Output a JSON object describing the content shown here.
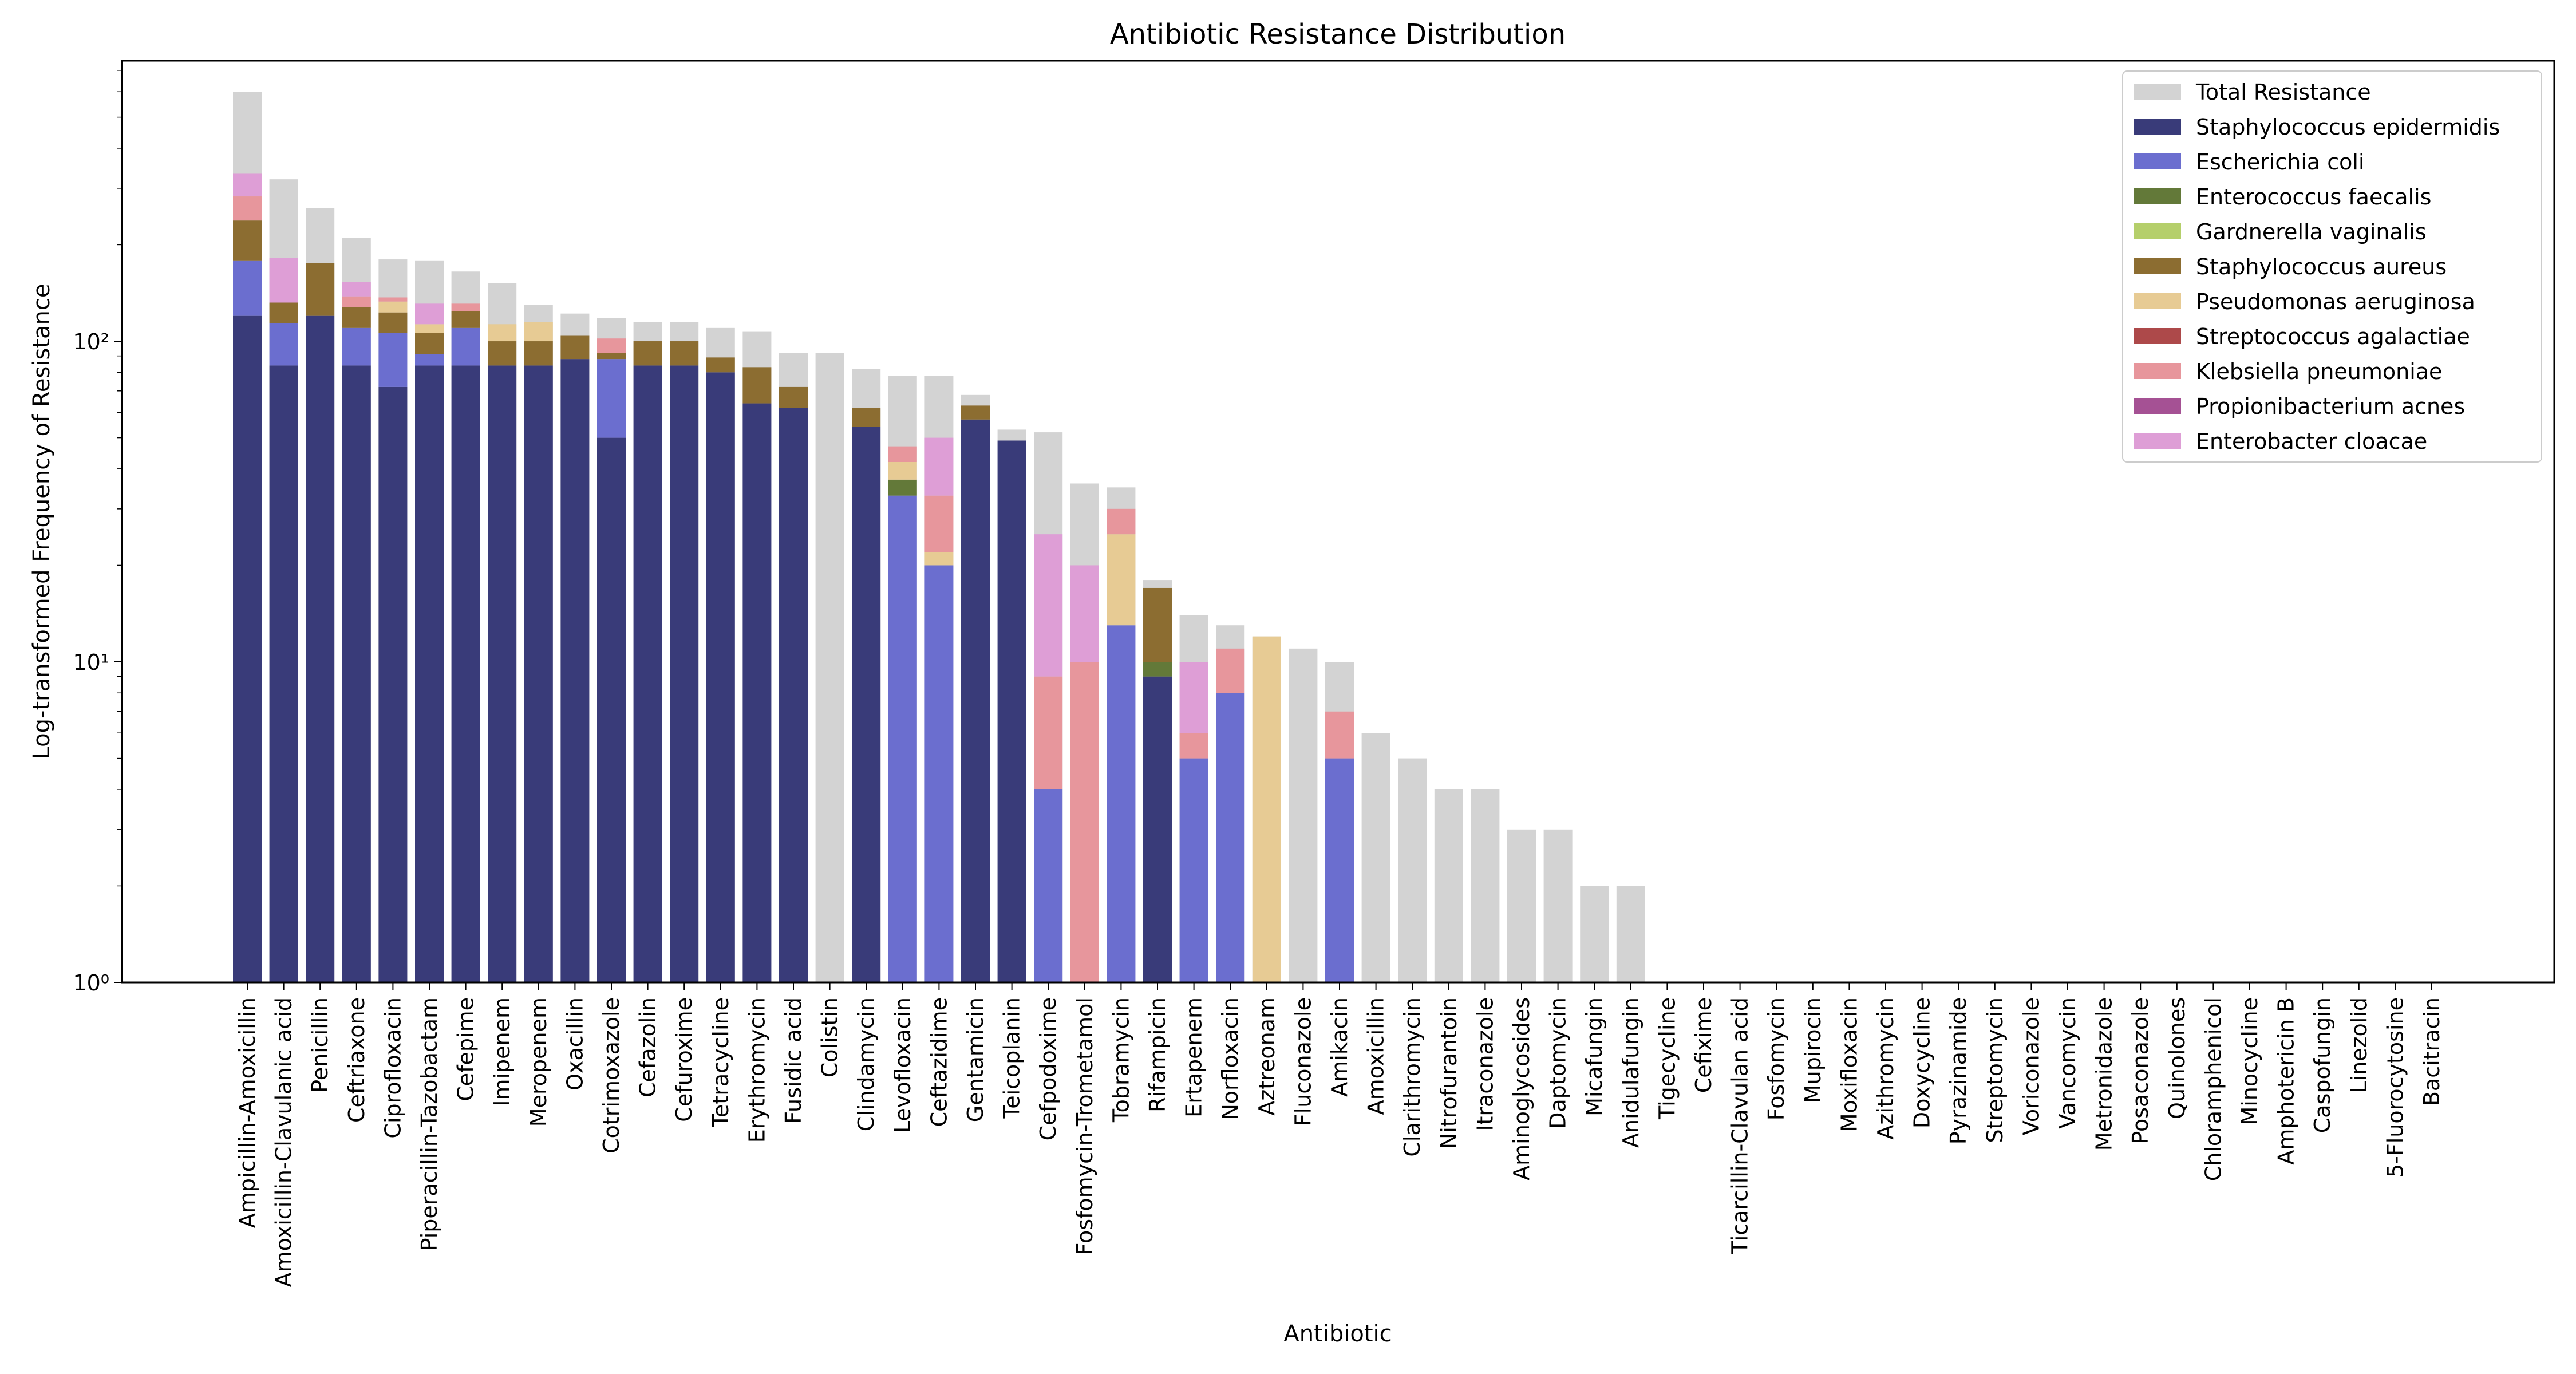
{
  "chart_data": {
    "type": "bar",
    "stacked": true,
    "title": "Antibiotic Resistance Distribution",
    "xlabel": "Antibiotic",
    "ylabel": "Log-transformed Frequency of Resistance",
    "yscale": "log",
    "ylim": [
      1,
      750
    ],
    "yticks": [
      1,
      10,
      100
    ],
    "ytick_labels": [
      "10⁰",
      "10¹",
      "10²"
    ],
    "legend_position": "top-right",
    "categories": [
      "Ampicillin-Amoxicillin",
      "Amoxicillin-Clavulanic acid",
      "Penicillin",
      "Ceftriaxone",
      "Ciprofloxacin",
      "Piperacillin-Tazobactam",
      "Cefepime",
      "Imipenem",
      "Meropenem",
      "Oxacillin",
      "Cotrimoxazole",
      "Cefazolin",
      "Cefuroxime",
      "Tetracycline",
      "Erythromycin",
      "Fusidic acid",
      "Colistin",
      "Clindamycin",
      "Levofloxacin",
      "Ceftazidime",
      "Gentamicin",
      "Teicoplanin",
      "Cefpodoxime",
      "Fosfomycin-Trometamol",
      "Tobramycin",
      "Rifampicin",
      "Ertapenem",
      "Norfloxacin",
      "Aztreonam",
      "Fluconazole",
      "Amikacin",
      "Amoxicillin",
      "Clarithromycin",
      "Nitrofurantoin",
      "Itraconazole",
      "Aminoglycosides",
      "Daptomycin",
      "Micafungin",
      "Anidulafungin",
      "Tigecycline",
      "Cefixime",
      "Ticarcillin-Clavulan acid",
      "Fosfomycin",
      "Mupirocin",
      "Moxifloxacin",
      "Azithromycin",
      "Doxycycline",
      "Pyrazinamide",
      "Streptomycin",
      "Voriconazole",
      "Vancomycin",
      "Metronidazole",
      "Posaconazole",
      "Quinolones",
      "Chloramphenicol",
      "Minocycline",
      "Amphotericin B",
      "Caspofungin",
      "Linezolid",
      "5-Fluorocytosine",
      "Bacitracin"
    ],
    "total": {
      "name": "Total Resistance",
      "color": "#d3d3d3",
      "values": [
        600,
        320,
        260,
        210,
        180,
        178,
        165,
        152,
        130,
        122,
        118,
        115,
        115,
        110,
        107,
        92,
        92,
        82,
        78,
        78,
        68,
        53,
        52,
        36,
        35,
        18,
        14,
        13,
        12,
        11,
        10,
        6,
        5,
        4,
        4,
        3,
        3,
        2,
        2,
        1,
        1,
        1,
        1,
        1,
        1,
        1,
        1,
        1,
        1,
        1,
        1,
        1,
        1,
        1,
        1,
        1,
        1,
        1,
        1,
        1,
        1
      ]
    },
    "series": [
      {
        "name": "Staphylococcus epidermidis",
        "color": "#393b79",
        "values": [
          120,
          84,
          120,
          84,
          72,
          84,
          84,
          84,
          84,
          88,
          50,
          84,
          84,
          80,
          64,
          62,
          0,
          54,
          0,
          0,
          57,
          49,
          0,
          0,
          0,
          9,
          0,
          0,
          0,
          0,
          0,
          0,
          0,
          0,
          0,
          0,
          0,
          0,
          0,
          0,
          0,
          0,
          0,
          0,
          0,
          0,
          0,
          0,
          0,
          0,
          0,
          0,
          0,
          0,
          0,
          0,
          0,
          0,
          0,
          0,
          0
        ]
      },
      {
        "name": "Escherichia coli",
        "color": "#6b6ecf",
        "values": [
          58,
          30,
          0,
          26,
          34,
          7,
          26,
          0,
          0,
          0,
          38,
          0,
          0,
          0,
          0,
          0,
          0,
          0,
          33,
          20,
          0,
          0,
          4,
          0,
          13,
          0,
          5,
          8,
          0,
          0,
          5,
          0,
          0,
          0,
          0,
          0,
          0,
          0,
          0,
          0,
          0,
          0,
          0,
          0,
          0,
          0,
          0,
          0,
          0,
          0,
          0,
          0,
          0,
          0,
          0,
          0,
          0,
          0,
          0,
          0,
          0
        ]
      },
      {
        "name": "Enterococcus faecalis",
        "color": "#637939",
        "values": [
          0,
          0,
          0,
          0,
          0,
          0,
          0,
          0,
          0,
          0,
          0,
          0,
          0,
          0,
          0,
          0,
          0,
          0,
          4,
          0,
          0,
          0,
          0,
          0,
          0,
          1,
          0,
          0,
          0,
          0,
          0,
          0,
          0,
          0,
          0,
          0,
          0,
          0,
          0,
          0,
          0,
          0,
          0,
          0,
          0,
          0,
          0,
          0,
          0,
          0,
          0,
          0,
          0,
          0,
          0,
          0,
          0,
          0,
          0,
          0,
          0
        ]
      },
      {
        "name": "Gardnerella vaginalis",
        "color": "#b5cf6b",
        "values": [
          0,
          0,
          0,
          0,
          0,
          0,
          0,
          0,
          0,
          0,
          0,
          0,
          0,
          0,
          0,
          0,
          0,
          0,
          0,
          0,
          0,
          0,
          0,
          0,
          0,
          0,
          0,
          0,
          0,
          0,
          0,
          0,
          0,
          0,
          0,
          0,
          0,
          0,
          0,
          0,
          0,
          0,
          0,
          0,
          0,
          0,
          0,
          0,
          0,
          0,
          0,
          0,
          0,
          0,
          0,
          0,
          0,
          0,
          0,
          0,
          0
        ]
      },
      {
        "name": "Staphylococcus aureus",
        "color": "#8c6d31",
        "values": [
          60,
          18,
          55,
          18,
          17,
          15,
          14,
          16,
          16,
          16,
          4,
          16,
          16,
          9,
          19,
          10,
          0,
          8,
          0,
          0,
          6,
          0,
          0,
          0,
          0,
          7,
          0,
          0,
          0,
          0,
          0,
          0,
          0,
          0,
          0,
          0,
          0,
          0,
          0,
          0,
          0,
          0,
          0,
          0,
          0,
          0,
          0,
          0,
          0,
          0,
          0,
          0,
          0,
          0,
          0,
          0,
          0,
          0,
          0,
          0,
          0
        ]
      },
      {
        "name": "Pseudomonas aeruginosa",
        "color": "#e7cb94",
        "values": [
          0,
          0,
          0,
          0,
          10,
          7,
          0,
          13,
          15,
          0,
          0,
          0,
          0,
          0,
          0,
          0,
          0,
          0,
          5,
          2,
          0,
          0,
          0,
          0,
          12,
          0,
          0,
          0,
          12,
          0,
          0,
          0,
          0,
          0,
          0,
          0,
          0,
          0,
          0,
          0,
          0,
          0,
          0,
          0,
          0,
          0,
          0,
          0,
          0,
          0,
          0,
          0,
          0,
          0,
          0,
          0,
          0,
          0,
          0,
          0,
          0
        ]
      },
      {
        "name": "Streptococcus agalactiae",
        "color": "#ad494a",
        "values": [
          0,
          0,
          0,
          0,
          0,
          0,
          0,
          0,
          0,
          0,
          0,
          0,
          0,
          0,
          0,
          0,
          0,
          0,
          0,
          0,
          0,
          0,
          0,
          0,
          0,
          0,
          0,
          0,
          0,
          0,
          0,
          0,
          0,
          0,
          0,
          0,
          0,
          0,
          0,
          0,
          0,
          0,
          0,
          0,
          0,
          0,
          0,
          0,
          0,
          0,
          0,
          0,
          0,
          0,
          0,
          0,
          0,
          0,
          0,
          0,
          0
        ]
      },
      {
        "name": "Klebsiella pneumoniae",
        "color": "#e7969c",
        "values": [
          45,
          0,
          0,
          10,
          4,
          0,
          7,
          0,
          0,
          0,
          10,
          0,
          0,
          0,
          0,
          0,
          0,
          0,
          5,
          11,
          0,
          0,
          5,
          10,
          5,
          0,
          1,
          3,
          0,
          0,
          2,
          0,
          0,
          0,
          0,
          0,
          0,
          0,
          0,
          0,
          0,
          0,
          0,
          0,
          0,
          0,
          0,
          0,
          0,
          0,
          0,
          0,
          0,
          0,
          0,
          0,
          0,
          0,
          0,
          0,
          0
        ]
      },
      {
        "name": "Propionibacterium acnes",
        "color": "#a55194",
        "values": [
          0,
          0,
          0,
          0,
          0,
          0,
          0,
          0,
          0,
          0,
          0,
          0,
          0,
          0,
          0,
          0,
          0,
          0,
          0,
          0,
          0,
          0,
          0,
          0,
          0,
          0,
          0,
          0,
          0,
          0,
          0,
          0,
          0,
          0,
          0,
          0,
          0,
          0,
          0,
          0,
          0,
          0,
          0,
          0,
          0,
          0,
          0,
          0,
          0,
          0,
          0,
          0,
          0,
          0,
          0,
          0,
          0,
          0,
          0,
          0,
          0
        ]
      },
      {
        "name": "Enterobacter cloacae",
        "color": "#de9ed6",
        "values": [
          50,
          50,
          0,
          15,
          0,
          18,
          0,
          0,
          0,
          0,
          0,
          0,
          0,
          0,
          0,
          0,
          0,
          0,
          0,
          17,
          0,
          0,
          16,
          10,
          0,
          0,
          4,
          0,
          0,
          0,
          0,
          0,
          0,
          0,
          0,
          0,
          0,
          0,
          0,
          0,
          0,
          0,
          0,
          0,
          0,
          0,
          0,
          0,
          0,
          0,
          0,
          0,
          0,
          0,
          0,
          0,
          0,
          0,
          0,
          0,
          0
        ]
      }
    ]
  }
}
